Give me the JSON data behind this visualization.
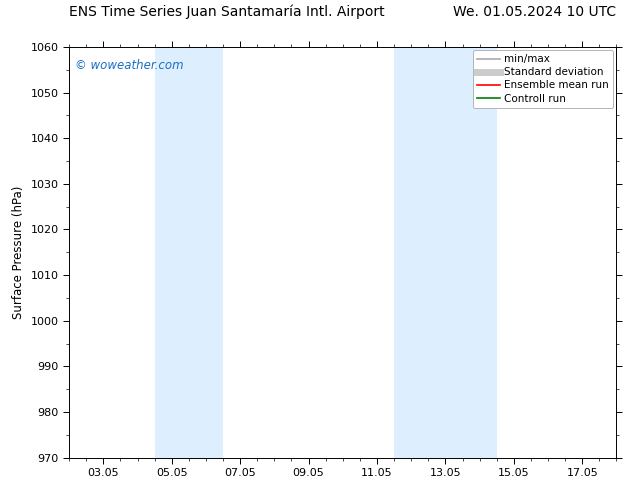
{
  "title_left": "ENS Time Series Juan Santamaría Intl. Airport",
  "title_right": "We. 01.05.2024 10 UTC",
  "ylabel": "Surface Pressure (hPa)",
  "ylim": [
    970,
    1060
  ],
  "yticks": [
    970,
    980,
    990,
    1000,
    1010,
    1020,
    1030,
    1040,
    1050,
    1060
  ],
  "xtick_labels": [
    "03.05",
    "05.05",
    "07.05",
    "09.05",
    "11.05",
    "13.05",
    "15.05",
    "17.05"
  ],
  "xtick_positions": [
    2,
    4,
    6,
    8,
    10,
    12,
    14,
    16
  ],
  "xlim": [
    1,
    17
  ],
  "watermark": "© woweather.com",
  "watermark_color": "#1a6fc4",
  "background_color": "#ffffff",
  "plot_bg_color": "#ffffff",
  "shaded_bands": [
    {
      "x_start": 3.5,
      "x_end": 5.5,
      "color": "#ddeeff"
    },
    {
      "x_start": 10.5,
      "x_end": 13.5,
      "color": "#ddeeff"
    }
  ],
  "legend_entries": [
    {
      "label": "min/max",
      "color": "#aaaaaa",
      "lw": 1.2,
      "style": "solid"
    },
    {
      "label": "Standard deviation",
      "color": "#cccccc",
      "lw": 5,
      "style": "solid"
    },
    {
      "label": "Ensemble mean run",
      "color": "#ff0000",
      "lw": 1.2,
      "style": "solid"
    },
    {
      "label": "Controll run",
      "color": "#008000",
      "lw": 1.2,
      "style": "solid"
    }
  ],
  "title_fontsize": 10,
  "axis_fontsize": 8.5,
  "tick_fontsize": 8,
  "legend_fontsize": 7.5,
  "watermark_fontsize": 8.5
}
